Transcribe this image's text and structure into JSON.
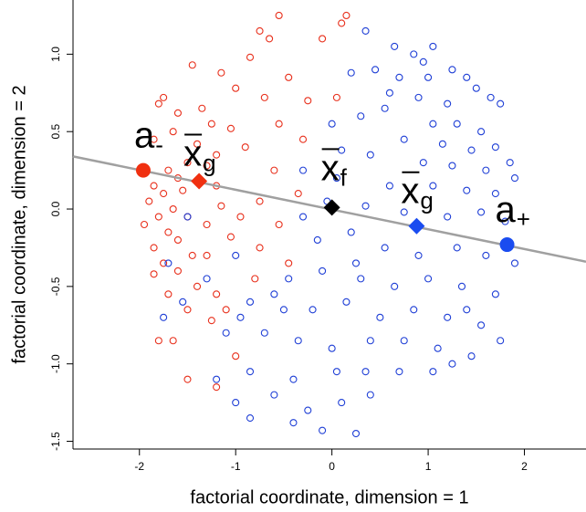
{
  "chart_data": {
    "type": "scatter",
    "x_label": "factorial coordinate, dimension = 1",
    "y_label": "factorial coordinate, dimension = 2",
    "xlim": [
      -2.69,
      2.64
    ],
    "ylim": [
      -1.55,
      1.35
    ],
    "xticks": [
      -2,
      -1,
      0,
      1,
      2
    ],
    "yticks": [
      -1.5,
      {
        "value": -1,
        "label": "-1.0"
      },
      -0.5,
      {
        "value": 0,
        "label": "0.0"
      },
      0.5,
      {
        "value": 1,
        "label": "1.0"
      }
    ],
    "series": [
      {
        "color": "#e8301c",
        "x": [
          -0.55,
          -0.75,
          -0.65,
          0.1,
          0.15,
          -0.1,
          -0.85,
          -1.45,
          -1.15,
          -1.0,
          -0.45,
          -0.7,
          -1.75,
          -1.8,
          -1.6,
          -1.25,
          -1.65,
          -1.4,
          -1.85,
          -1.2,
          -1.5,
          -1.7,
          -1.3,
          -1.6,
          -1.85,
          -1.75,
          -1.55,
          -1.2,
          -1.9,
          -1.65,
          -1.8,
          -1.5,
          -1.15,
          -1.7,
          -1.3,
          -1.85,
          -1.6,
          -1.05,
          -1.45,
          -1.75,
          -1.6,
          -1.85,
          -1.4,
          -1.7,
          -1.2,
          -0.8,
          -1.5,
          -1.25,
          -1.8,
          -1.65,
          -1.0,
          -1.5,
          -1.2,
          -0.75,
          -0.95,
          -0.55,
          -0.35,
          -0.6,
          -0.9,
          -0.3,
          -0.55,
          -0.25,
          0.05,
          -1.3,
          -1.1,
          -1.95,
          -1.35,
          -1.05,
          -0.75,
          -0.45
        ],
        "values": [
          1.25,
          1.15,
          1.1,
          1.2,
          1.25,
          1.1,
          0.98,
          0.93,
          0.88,
          0.78,
          0.85,
          0.72,
          0.72,
          0.68,
          0.62,
          0.55,
          0.5,
          0.42,
          0.45,
          0.35,
          0.3,
          0.25,
          0.28,
          0.2,
          0.15,
          0.1,
          0.12,
          0.15,
          0.05,
          0.0,
          -0.05,
          -0.05,
          0.02,
          -0.15,
          -0.1,
          -0.25,
          -0.2,
          -0.18,
          -0.3,
          -0.35,
          -0.4,
          -0.42,
          -0.5,
          -0.55,
          -0.55,
          -0.45,
          -0.65,
          -0.72,
          -0.85,
          -0.85,
          -0.95,
          -1.1,
          -1.15,
          -0.25,
          -0.05,
          -0.1,
          0.1,
          0.25,
          0.4,
          0.45,
          0.55,
          0.7,
          0.72,
          -0.3,
          -0.65,
          -0.1,
          0.65,
          0.52,
          0.05,
          -0.35
        ]
      },
      {
        "color": "#1f3fd6",
        "x": [
          0.35,
          0.65,
          0.85,
          1.05,
          0.95,
          0.7,
          0.45,
          0.2,
          1.25,
          1.4,
          1.5,
          1.65,
          1.2,
          0.9,
          1.75,
          0.55,
          0.3,
          0.0,
          1.05,
          1.3,
          1.55,
          0.75,
          1.15,
          1.45,
          1.7,
          0.4,
          0.95,
          1.25,
          1.6,
          1.85,
          -0.3,
          0.05,
          0.6,
          1.05,
          1.4,
          1.7,
          -0.05,
          0.35,
          0.75,
          1.2,
          1.55,
          1.8,
          -0.15,
          0.2,
          0.55,
          0.9,
          1.3,
          1.6,
          1.9,
          -0.45,
          -0.1,
          0.3,
          0.65,
          1.0,
          1.35,
          1.7,
          -0.85,
          -0.6,
          -0.2,
          0.15,
          0.5,
          0.85,
          1.2,
          1.55,
          -1.1,
          -0.7,
          -0.35,
          0.0,
          0.4,
          0.75,
          1.1,
          1.45,
          -1.2,
          -0.85,
          -0.4,
          0.05,
          0.35,
          0.7,
          1.05,
          1.25,
          -1.0,
          -0.6,
          -0.25,
          0.1,
          0.4,
          -0.85,
          -0.4,
          -0.1,
          0.25,
          -1.5,
          -1.7,
          -1.3,
          -1.0,
          -1.55,
          -0.95,
          -1.75,
          -0.3,
          0.1,
          1.9,
          1.75,
          1.4,
          0.6,
          1.0,
          -0.5,
          0.25
        ],
        "values": [
          1.15,
          1.05,
          1.0,
          1.05,
          0.95,
          0.85,
          0.9,
          0.88,
          0.9,
          0.85,
          0.78,
          0.72,
          0.68,
          0.72,
          0.68,
          0.65,
          0.6,
          0.55,
          0.55,
          0.55,
          0.5,
          0.45,
          0.42,
          0.38,
          0.4,
          0.35,
          0.3,
          0.28,
          0.25,
          0.3,
          0.25,
          0.2,
          0.15,
          0.15,
          0.12,
          0.1,
          0.05,
          0.02,
          -0.02,
          -0.05,
          -0.02,
          -0.08,
          -0.2,
          -0.15,
          -0.25,
          -0.3,
          -0.25,
          -0.3,
          -0.35,
          -0.45,
          -0.4,
          -0.45,
          -0.5,
          -0.45,
          -0.5,
          -0.55,
          -0.6,
          -0.55,
          -0.65,
          -0.6,
          -0.7,
          -0.65,
          -0.7,
          -0.75,
          -0.8,
          -0.8,
          -0.85,
          -0.9,
          -0.85,
          -0.85,
          -0.9,
          -0.95,
          -1.1,
          -1.05,
          -1.1,
          -1.05,
          -1.05,
          -1.05,
          -1.05,
          -1.0,
          -1.25,
          -1.2,
          -1.3,
          -1.25,
          -1.2,
          -1.35,
          -1.38,
          -1.43,
          -1.45,
          -0.05,
          -0.35,
          -0.45,
          -0.3,
          -0.6,
          -0.7,
          -0.7,
          -0.05,
          0.38,
          0.2,
          -0.85,
          -0.65,
          0.75,
          0.85,
          -0.65,
          -0.35
        ]
      }
    ],
    "line": {
      "color": "#a0a0a0",
      "x": [
        -2.69,
        2.64
      ],
      "values": [
        0.34,
        -0.34
      ]
    },
    "highlights": {
      "x": [
        -1.96,
        -1.38,
        0.0,
        0.88,
        1.82
      ],
      "values": [
        0.25,
        0.18,
        0.01,
        -0.11,
        -0.23
      ],
      "colors": [
        "#f03010",
        "#f03010",
        "#000000",
        "#1a4cf0",
        "#1a4cf0"
      ],
      "markers": [
        "circle",
        "diamond",
        "diamond",
        "diamond",
        "circle"
      ],
      "labels": [
        {
          "text": "a",
          "sub": "-",
          "overline": false
        },
        {
          "text": "x",
          "sub": "g",
          "overline": true
        },
        {
          "text": "x",
          "sub": "f",
          "overline": true
        },
        {
          "text": "x",
          "sub": "g",
          "overline": true
        },
        {
          "text": "a",
          "sub": "+",
          "overline": false
        }
      ]
    }
  }
}
